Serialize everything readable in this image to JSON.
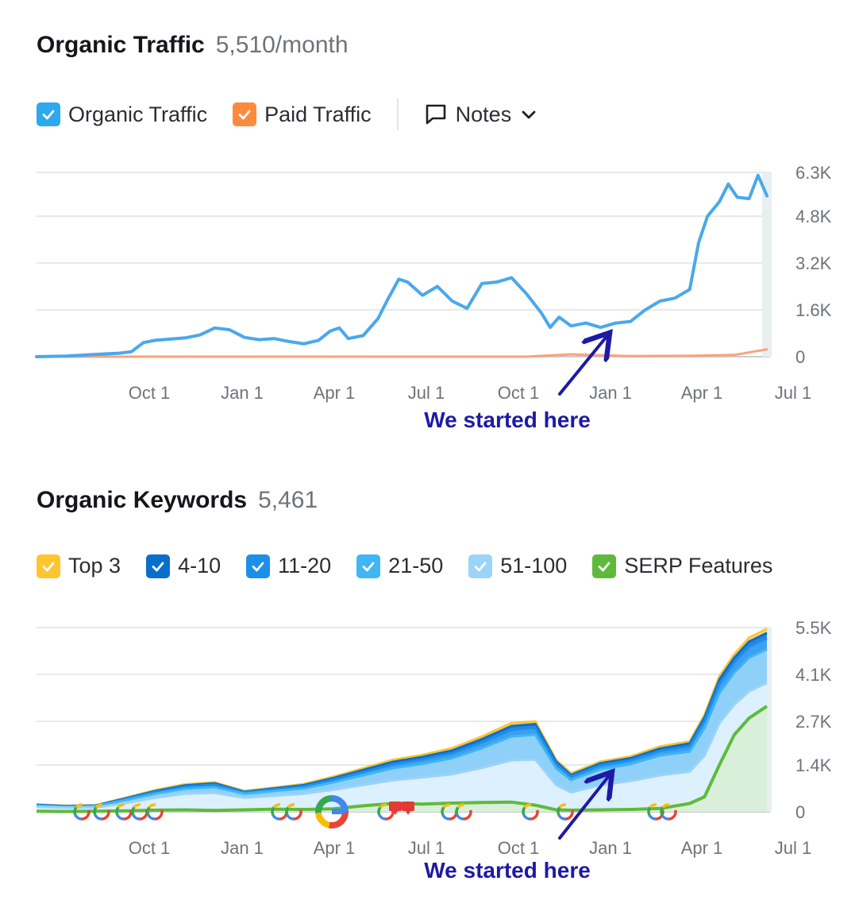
{
  "traffic": {
    "title": "Organic Traffic",
    "value": "5,510/month",
    "legend": [
      {
        "label": "Organic Traffic",
        "color": "#2ea8ef"
      },
      {
        "label": "Paid Traffic",
        "color": "#ff8a3d"
      }
    ],
    "notes_label": "Notes",
    "annotation": "We started here"
  },
  "keywords": {
    "title": "Organic Keywords",
    "value": "5,461",
    "legend": [
      {
        "label": "Top 3",
        "color": "#ffc531"
      },
      {
        "label": "4-10",
        "color": "#0a6fcc"
      },
      {
        "label": "11-20",
        "color": "#1d8fe8"
      },
      {
        "label": "21-50",
        "color": "#3fb6f5"
      },
      {
        "label": "51-100",
        "color": "#9cd3f9"
      },
      {
        "label": "SERP Features",
        "color": "#5fba3b"
      }
    ],
    "annotation": "We started here"
  },
  "chart_data": [
    {
      "type": "line",
      "title": "Organic Traffic",
      "x_tick_labels": [
        "Oct 1",
        "Jan 1",
        "Apr 1",
        "Jul 1",
        "Oct 1",
        "Jan 1",
        "Apr 1",
        "Jul 1"
      ],
      "y_tick_labels": [
        "0",
        "1.6K",
        "3.2K",
        "4.8K",
        "6.3K"
      ],
      "y_ticks": [
        0,
        1600,
        3200,
        4800,
        6300
      ],
      "ylim": [
        0,
        6300
      ],
      "x_range_months": [
        -2.0,
        22.6
      ],
      "grid": true,
      "series": [
        {
          "name": "Organic Traffic",
          "color": "#4aa8ec",
          "x": [
            -2.0,
            -1.0,
            0.0,
            0.8,
            1.2,
            1.6,
            2.0,
            2.5,
            3.0,
            3.5,
            4.0,
            4.5,
            5.0,
            5.5,
            6.0,
            6.5,
            7.0,
            7.5,
            7.9,
            8.2,
            8.5,
            9.0,
            9.5,
            9.8,
            10.2,
            10.5,
            11.0,
            11.5,
            12.0,
            12.5,
            13.0,
            13.5,
            14.0,
            14.5,
            15.0,
            15.3,
            15.6,
            16.0,
            16.5,
            17.0,
            17.5,
            18.0,
            18.5,
            19.0,
            19.5,
            20.0,
            20.3,
            20.6,
            21.0,
            21.3,
            21.6,
            22.0,
            22.3,
            22.6
          ],
          "y": [
            0,
            20,
            80,
            120,
            170,
            480,
            560,
            600,
            640,
            740,
            980,
            920,
            660,
            580,
            620,
            520,
            440,
            560,
            880,
            980,
            620,
            720,
            1300,
            1900,
            2650,
            2550,
            2100,
            2400,
            1900,
            1650,
            2500,
            2550,
            2700,
            2150,
            1500,
            1000,
            1350,
            1050,
            1150,
            1000,
            1150,
            1200,
            1600,
            1900,
            2000,
            2300,
            3900,
            4800,
            5300,
            5900,
            5450,
            5400,
            6200,
            5500
          ]
        },
        {
          "name": "Paid Traffic",
          "color": "#f9a27a",
          "x": [
            -2.0,
            4.0,
            10.0,
            14.5,
            16.0,
            18.0,
            20.0,
            21.5,
            22.6
          ],
          "y": [
            0,
            0,
            0,
            0,
            80,
            20,
            30,
            60,
            250
          ]
        }
      ],
      "annotation": {
        "text": "We started here",
        "x_month": 15.6
      }
    },
    {
      "type": "area",
      "title": "Organic Keywords",
      "x_tick_labels": [
        "Oct 1",
        "Jan 1",
        "Apr 1",
        "Jul 1",
        "Oct 1",
        "Jan 1",
        "Apr 1",
        "Jul 1"
      ],
      "y_tick_labels": [
        "0",
        "1.4K",
        "2.7K",
        "4.1K",
        "5.5K"
      ],
      "y_ticks": [
        0,
        1400,
        2700,
        4100,
        5500
      ],
      "ylim": [
        0,
        5500
      ],
      "x_range_months": [
        -2.0,
        22.6
      ],
      "grid": true,
      "x": [
        -2.0,
        -1.0,
        0.0,
        1.0,
        2.0,
        3.0,
        4.0,
        5.0,
        6.0,
        7.0,
        8.0,
        9.0,
        10.0,
        11.0,
        12.0,
        13.0,
        14.0,
        14.8,
        15.5,
        16.0,
        17.0,
        18.0,
        19.0,
        20.0,
        20.5,
        21.0,
        21.5,
        22.0,
        22.6
      ],
      "series": [
        {
          "name": "Top 3",
          "color": "#ffc531",
          "y": [
            220,
            180,
            200,
            420,
            650,
            820,
            880,
            620,
            720,
            830,
            1050,
            1300,
            1550,
            1700,
            1900,
            2250,
            2650,
            2700,
            1550,
            1150,
            1500,
            1650,
            1950,
            2100,
            2900,
            4050,
            4700,
            5200,
            5460
          ]
        },
        {
          "name": "4-10",
          "color": "#0a6fcc",
          "y": [
            210,
            170,
            190,
            400,
            620,
            790,
            850,
            600,
            700,
            800,
            1010,
            1250,
            1490,
            1640,
            1830,
            2170,
            2560,
            2620,
            1500,
            1100,
            1450,
            1600,
            1890,
            2040,
            2820,
            3950,
            4600,
            5080,
            5340
          ]
        },
        {
          "name": "11-20",
          "color": "#1d8fe8",
          "y": [
            200,
            160,
            180,
            380,
            590,
            750,
            810,
            580,
            670,
            760,
            960,
            1190,
            1420,
            1570,
            1750,
            2070,
            2450,
            2510,
            1430,
            1050,
            1390,
            1540,
            1820,
            1960,
            2720,
            3820,
            4460,
            4930,
            5180
          ]
        },
        {
          "name": "21-50",
          "color": "#3fb6f5",
          "y": [
            180,
            150,
            170,
            350,
            540,
            690,
            740,
            540,
            620,
            700,
            880,
            1090,
            1300,
            1430,
            1600,
            1900,
            2250,
            2300,
            1300,
            950,
            1270,
            1420,
            1680,
            1800,
            2500,
            3550,
            4150,
            4600,
            4850
          ]
        },
        {
          "name": "51-100",
          "color": "#9cd3f9",
          "y": [
            150,
            120,
            130,
            260,
            420,
            540,
            570,
            420,
            480,
            540,
            660,
            800,
            940,
            1030,
            1120,
            1310,
            1540,
            1560,
            800,
            580,
            800,
            920,
            1090,
            1200,
            1680,
            2650,
            3200,
            3600,
            3850
          ]
        },
        {
          "name": "SERP Features",
          "color": "#5fba3b",
          "y": [
            20,
            10,
            20,
            30,
            50,
            60,
            40,
            60,
            80,
            70,
            90,
            180,
            250,
            230,
            260,
            280,
            290,
            200,
            60,
            50,
            60,
            70,
            100,
            250,
            450,
            1400,
            2300,
            2800,
            3150
          ]
        }
      ],
      "annotation": {
        "text": "We started here",
        "x_month": 15.6
      }
    }
  ]
}
